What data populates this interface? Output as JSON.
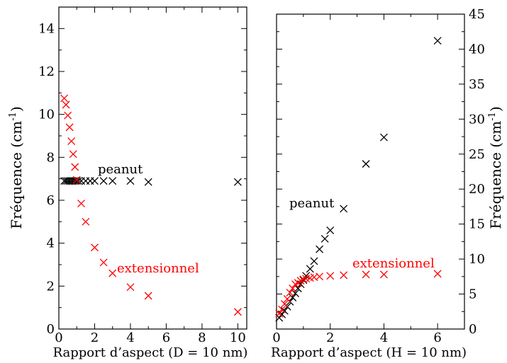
{
  "chart_data": [
    {
      "type": "scatter",
      "title": "",
      "xlabel": "Rapport d’aspect (D = 10 nm)",
      "ylabel": "Fréquence (cm",
      "ylabel_sup": "-1",
      "ylabel_close": ")",
      "xlim": [
        0,
        10.5
      ],
      "ylim": [
        0,
        15
      ],
      "xticks": [
        0,
        2,
        4,
        6,
        8,
        10
      ],
      "yticks": [
        0,
        2,
        4,
        6,
        8,
        10,
        12,
        14
      ],
      "xticklabels": [
        "0",
        "2",
        "4",
        "6",
        "8",
        "10"
      ],
      "yticklabels": [
        "0",
        "2",
        "4",
        "6",
        "8",
        "10",
        "12",
        "14"
      ],
      "grid": false,
      "series": [
        {
          "name": "peanut",
          "color": "#000000",
          "marker": "x",
          "x": [
            0.3,
            0.4,
            0.5,
            0.6,
            0.7,
            0.8,
            0.9,
            1.0,
            1.1,
            1.25,
            1.5,
            1.75,
            2.0,
            2.5,
            3.0,
            4.0,
            5.0,
            10.0
          ],
          "y": [
            6.9,
            6.9,
            6.9,
            6.9,
            6.9,
            6.9,
            6.9,
            6.9,
            6.9,
            6.9,
            6.9,
            6.9,
            6.9,
            6.9,
            6.9,
            6.9,
            6.85,
            6.85
          ]
        },
        {
          "name": "extensionnel",
          "color": "#ff0000",
          "marker": "x",
          "x": [
            0.3,
            0.4,
            0.5,
            0.6,
            0.7,
            0.8,
            0.9,
            1.0,
            1.25,
            1.5,
            2.0,
            2.5,
            3.0,
            4.0,
            5.0,
            10.0
          ],
          "y": [
            10.75,
            10.45,
            9.95,
            9.4,
            8.75,
            8.15,
            7.55,
            6.95,
            5.85,
            5.0,
            3.8,
            3.1,
            2.6,
            1.95,
            1.55,
            0.8
          ]
        }
      ],
      "annotations": [
        {
          "text": "peanut",
          "color": "#000000"
        },
        {
          "text": "extensionnel",
          "color": "#ff0000"
        }
      ]
    },
    {
      "type": "scatter",
      "title": "",
      "xlabel": "Rapport d’aspect (H = 10 nm)",
      "ylabel": "Fréquence (cm",
      "ylabel_sup": "-1",
      "ylabel_close": ")",
      "y_axis_side": "right",
      "xlim": [
        0,
        7
      ],
      "ylim": [
        0,
        45
      ],
      "xticks": [
        0,
        2,
        4,
        6
      ],
      "yticks": [
        0,
        5,
        10,
        15,
        20,
        25,
        30,
        35,
        40,
        45
      ],
      "xticklabels": [
        "0",
        "2",
        "4",
        "6"
      ],
      "yticklabels": [
        "0",
        "5",
        "10",
        "15",
        "20",
        "25",
        "30",
        "35",
        "40",
        "45"
      ],
      "grid": false,
      "series": [
        {
          "name": "peanut",
          "color": "#000000",
          "marker": "x",
          "x": [
            0.1,
            0.2,
            0.3,
            0.4,
            0.5,
            0.6,
            0.7,
            0.8,
            0.9,
            1.0,
            1.1,
            1.25,
            1.4,
            1.6,
            1.8,
            2.0,
            2.5,
            3.33,
            4.0,
            6.0
          ],
          "y": [
            1.6,
            2.1,
            2.6,
            3.2,
            3.9,
            4.5,
            5.1,
            5.8,
            6.4,
            7.0,
            7.6,
            8.6,
            9.7,
            11.4,
            12.9,
            14.1,
            17.2,
            23.6,
            27.4,
            41.2
          ]
        },
        {
          "name": "extensionnel",
          "color": "#ff0000",
          "marker": "x",
          "x": [
            0.1,
            0.2,
            0.3,
            0.4,
            0.5,
            0.6,
            0.7,
            0.8,
            0.9,
            1.0,
            1.1,
            1.25,
            1.4,
            1.6,
            2.0,
            2.5,
            3.33,
            4.0,
            6.0
          ],
          "y": [
            2.2,
            2.8,
            3.6,
            4.3,
            5.2,
            5.8,
            6.4,
            6.6,
            6.9,
            7.1,
            7.2,
            7.3,
            7.4,
            7.5,
            7.6,
            7.7,
            7.8,
            7.8,
            7.9
          ]
        }
      ],
      "annotations": [
        {
          "text": "peanut",
          "color": "#000000"
        },
        {
          "text": "extensionnel",
          "color": "#ff0000"
        }
      ]
    }
  ]
}
